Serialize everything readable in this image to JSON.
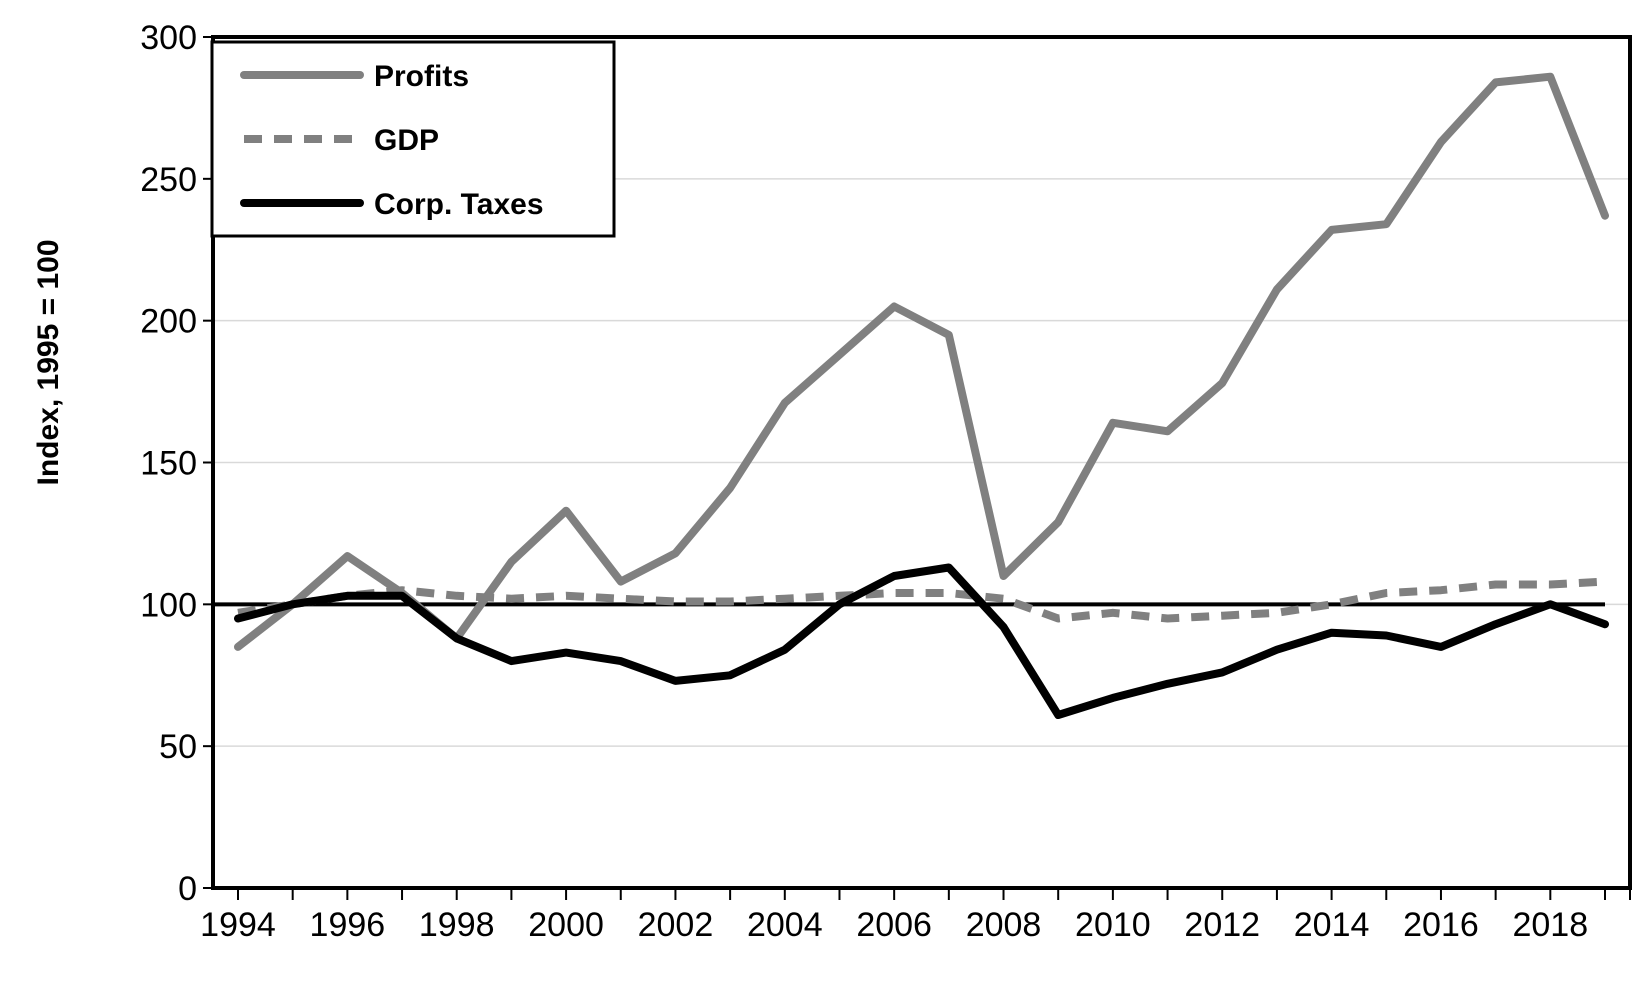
{
  "chart_data": {
    "type": "line",
    "title": "",
    "xlabel": "",
    "ylabel": "Index, 1995 = 100",
    "ylim": [
      0,
      300
    ],
    "yticks": [
      0,
      50,
      100,
      150,
      200,
      250,
      300
    ],
    "xlim": [
      1994,
      2019
    ],
    "xtick_labels": [
      "1994",
      "1996",
      "1998",
      "2000",
      "2002",
      "2004",
      "2006",
      "2008",
      "2010",
      "2012",
      "2014",
      "2016",
      "2018"
    ],
    "grid": true,
    "legend_position": "top-left",
    "reference_line": 100,
    "x": [
      1994,
      1995,
      1996,
      1997,
      1998,
      1999,
      2000,
      2001,
      2002,
      2003,
      2004,
      2005,
      2006,
      2007,
      2008,
      2009,
      2010,
      2011,
      2012,
      2013,
      2014,
      2015,
      2016,
      2017,
      2018,
      2019
    ],
    "series": [
      {
        "name": "Profits",
        "color": "#808080",
        "style": "solid",
        "values": [
          85,
          100,
          117,
          104,
          88,
          115,
          133,
          108,
          118,
          141,
          171,
          188,
          205,
          195,
          110,
          129,
          164,
          161,
          178,
          211,
          232,
          234,
          263,
          284,
          286,
          237
        ]
      },
      {
        "name": "GDP",
        "color": "#808080",
        "style": "dashed",
        "values": [
          97,
          100,
          103,
          105,
          103,
          102,
          103,
          102,
          101,
          101,
          102,
          103,
          104,
          104,
          102,
          95,
          97,
          95,
          96,
          97,
          100,
          104,
          105,
          107,
          107,
          108
        ]
      },
      {
        "name": "Corp. Taxes",
        "color": "#000000",
        "style": "solid",
        "values": [
          95,
          100,
          103,
          103,
          88,
          80,
          83,
          80,
          73,
          75,
          84,
          100,
          110,
          113,
          92,
          61,
          67,
          72,
          76,
          84,
          90,
          89,
          85,
          93,
          100,
          93
        ]
      }
    ]
  }
}
